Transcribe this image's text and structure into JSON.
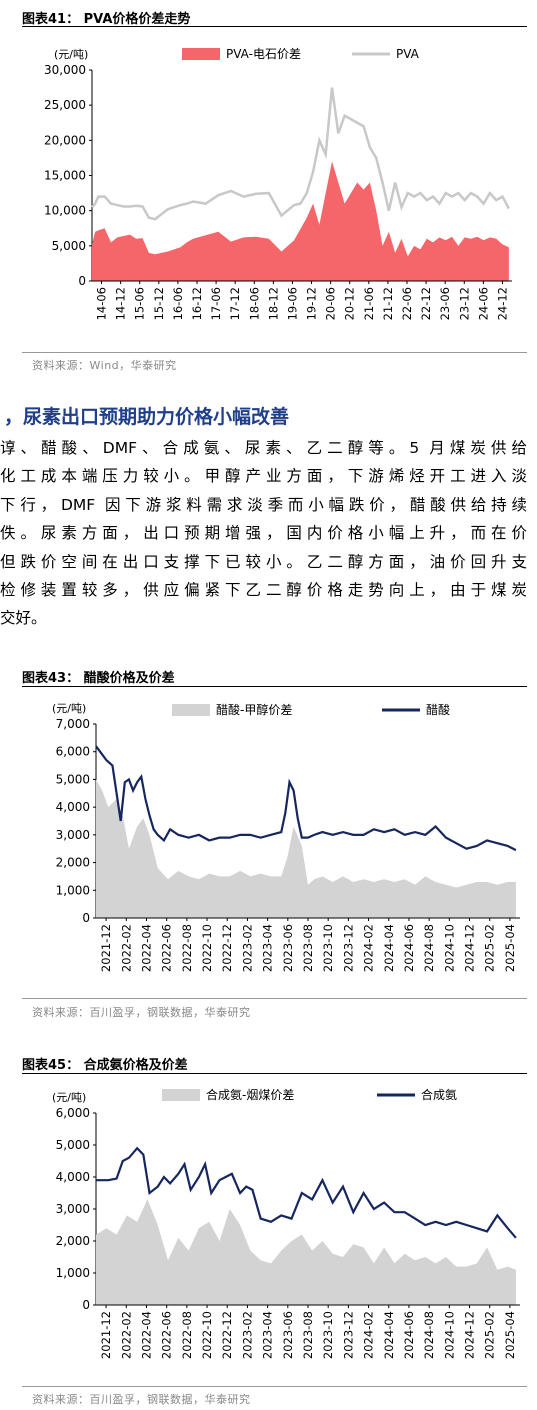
{
  "chart1": {
    "title": "图表41： PVA价格价差走势",
    "unit": "(元/吨)",
    "source": "资料来源：Wind，华泰研究",
    "legend": [
      "PVA-电石价差",
      "PVA"
    ],
    "colors": {
      "spread": "#f4666a",
      "price": "#c8c8c8"
    }
  },
  "chart2": {
    "title": "图表43： 醋酸价格及价差",
    "unit": "(元/吨)",
    "source": "资料来源：百川盈孚，钢联数据，华泰研究",
    "legend": [
      "醋酸-甲醇价差",
      "醋酸"
    ],
    "colors": {
      "spread": "#d3d3d3",
      "price": "#16265e"
    }
  },
  "chart3": {
    "title": "图表45： 合成氨价格及价差",
    "unit": "(元/吨)",
    "source": "资料来源：百川盈孚，钢联数据，华泰研究",
    "legend": [
      "合成氨-烟煤价差",
      "合成氨"
    ],
    "colors": {
      "spread": "#d3d3d3",
      "price": "#16265e"
    }
  },
  "section": {
    "heading": "，尿素出口预期助力价格小幅改善",
    "lines": [
      "谆、醋酸、DMF、合成氨、尿素、乙二醇等。5 月煤炭供给",
      "化工成本端压力较小。甲醇产业方面，下游烯烃开工进入淡",
      "下行，DMF 因下游浆料需求淡季而小幅跌价，醋酸供给持续",
      "佚。尿素方面，出口预期增强，国内价格小幅上升，而在价",
      "但跌价空间在出口支撑下已较小。乙二醇方面，油价回升支",
      "检修装置较多，供应偏紧下乙二醇价格走势向上，由于煤炭",
      "交好。"
    ]
  },
  "chart_data": [
    {
      "type": "area",
      "title": "PVA价格价差走势",
      "ylabel": "(元/吨)",
      "ylim": [
        0,
        30000
      ],
      "yticks": [
        0,
        5000,
        10000,
        15000,
        20000,
        25000,
        30000
      ],
      "x_labels": [
        "14-06",
        "14-12",
        "15-06",
        "15-12",
        "16-06",
        "16-12",
        "17-06",
        "17-12",
        "18-06",
        "18-12",
        "19-06",
        "19-12",
        "20-06",
        "20-12",
        "21-06",
        "21-12",
        "22-06",
        "22-12",
        "23-06",
        "23-12",
        "24-06",
        "24-12"
      ],
      "x_period": [
        "14-06",
        "25-05"
      ],
      "series": [
        {
          "name": "PVA-电石价差",
          "kind": "area",
          "x": [
            0,
            1,
            2,
            4,
            6,
            8,
            10,
            12,
            14,
            16,
            18,
            20,
            24,
            28,
            30,
            32,
            36,
            40,
            44,
            48,
            52,
            56,
            60,
            64,
            68,
            70,
            72,
            76,
            80,
            84,
            86,
            88,
            90,
            92,
            94,
            96,
            98,
            100,
            102,
            104,
            106,
            108,
            110,
            112,
            114,
            116,
            118,
            120,
            122,
            124,
            126,
            128,
            130,
            132
          ],
          "values": [
            5200,
            7000,
            7200,
            7500,
            5500,
            6200,
            6400,
            6600,
            6000,
            6100,
            4000,
            3800,
            4200,
            4800,
            5500,
            6000,
            6500,
            7000,
            5600,
            6200,
            6300,
            6000,
            4200,
            5800,
            9000,
            11000,
            8000,
            17000,
            11000,
            14000,
            13000,
            14000,
            10000,
            5000,
            7000,
            4000,
            6000,
            3500,
            5000,
            4500,
            6000,
            5500,
            6200,
            5800,
            6300,
            5000,
            6200,
            6000,
            6300,
            5800,
            6200,
            6000,
            5200,
            4800
          ]
        },
        {
          "name": "PVA",
          "kind": "line",
          "x": [
            0,
            1,
            2,
            4,
            6,
            8,
            10,
            12,
            14,
            16,
            18,
            20,
            24,
            28,
            30,
            32,
            36,
            40,
            44,
            48,
            52,
            56,
            60,
            64,
            66,
            68,
            70,
            72,
            74,
            76,
            78,
            80,
            84,
            86,
            88,
            90,
            92,
            94,
            96,
            98,
            100,
            102,
            104,
            106,
            108,
            110,
            112,
            114,
            116,
            118,
            120,
            122,
            124,
            126,
            128,
            130,
            132
          ],
          "values": [
            10500,
            11000,
            12000,
            12000,
            11000,
            10800,
            10600,
            10600,
            10700,
            10600,
            9000,
            8800,
            10200,
            10800,
            11000,
            11300,
            11000,
            12200,
            12800,
            12000,
            12400,
            12500,
            9300,
            10800,
            11000,
            12500,
            15500,
            20000,
            18000,
            27500,
            21000,
            23500,
            22500,
            22000,
            19000,
            17500,
            14000,
            10000,
            14000,
            10500,
            12500,
            12000,
            12500,
            11500,
            12000,
            11000,
            12500,
            12000,
            12500,
            11500,
            12500,
            12000,
            11000,
            12500,
            11500,
            12000,
            10300
          ]
        }
      ]
    },
    {
      "type": "area",
      "title": "醋酸价格及价差",
      "ylabel": "(元/吨)",
      "ylim": [
        0,
        7000
      ],
      "yticks": [
        0,
        1000,
        2000,
        3000,
        4000,
        5000,
        6000,
        7000
      ],
      "x_labels": [
        "2021-12",
        "2022-02",
        "2022-04",
        "2022-06",
        "2022-08",
        "2022-10",
        "2022-12",
        "2023-02",
        "2023-04",
        "2023-06",
        "2023-08",
        "2023-10",
        "2023-12",
        "2024-02",
        "2024-04",
        "2024-06",
        "2024-08",
        "2024-10",
        "2024-12",
        "2025-02",
        "2025-04"
      ],
      "series": [
        {
          "name": "醋酸-甲醇价差",
          "kind": "area",
          "x": [
            0,
            0.3,
            0.6,
            1,
            1.3,
            1.6,
            2,
            2.3,
            2.6,
            3,
            3.5,
            4,
            4.5,
            5,
            5.5,
            6,
            6.5,
            7,
            7.5,
            8,
            8.5,
            9,
            9.3,
            9.6,
            10,
            10.3,
            10.6,
            11,
            11.5,
            12,
            12.5,
            13,
            13.5,
            14,
            14.5,
            15,
            15.5,
            16,
            16.5,
            17,
            17.5,
            18,
            18.5,
            19,
            19.5,
            20,
            20.4
          ],
          "values": [
            5000,
            4600,
            4000,
            4300,
            3700,
            2500,
            3300,
            3600,
            3000,
            1800,
            1400,
            1700,
            1500,
            1400,
            1600,
            1500,
            1500,
            1700,
            1500,
            1600,
            1500,
            1500,
            2200,
            3300,
            2600,
            1200,
            1400,
            1500,
            1300,
            1500,
            1300,
            1400,
            1300,
            1400,
            1300,
            1400,
            1200,
            1500,
            1300,
            1200,
            1100,
            1200,
            1300,
            1300,
            1200,
            1300,
            1300
          ]
        },
        {
          "name": "醋酸",
          "kind": "line",
          "x": [
            0,
            0.2,
            0.5,
            0.8,
            1,
            1.2,
            1.4,
            1.6,
            1.8,
            2,
            2.2,
            2.4,
            2.6,
            2.8,
            3,
            3.3,
            3.6,
            4,
            4.5,
            5,
            5.5,
            6,
            6.5,
            7,
            7.5,
            8,
            8.5,
            9,
            9.2,
            9.4,
            9.6,
            9.8,
            10,
            10.3,
            10.6,
            11,
            11.5,
            12,
            12.5,
            13,
            13.5,
            14,
            14.5,
            15,
            15.5,
            16,
            16.5,
            17,
            17.5,
            18,
            18.5,
            19,
            19.5,
            20,
            20.4
          ],
          "values": [
            6200,
            6000,
            5700,
            5500,
            4500,
            3500,
            4900,
            5000,
            4600,
            4900,
            5100,
            4300,
            3700,
            3200,
            3000,
            2800,
            3200,
            3000,
            2900,
            3000,
            2800,
            2900,
            2900,
            3000,
            3000,
            2900,
            3000,
            3100,
            3800,
            4900,
            4600,
            3600,
            2900,
            2900,
            3000,
            3100,
            3000,
            3100,
            3000,
            3000,
            3200,
            3100,
            3200,
            3000,
            3100,
            3000,
            3300,
            2900,
            2700,
            2500,
            2600,
            2800,
            2700,
            2600,
            2450
          ]
        }
      ]
    },
    {
      "type": "area",
      "title": "合成氨价格及价差",
      "ylabel": "(元/吨)",
      "ylim": [
        0,
        6000
      ],
      "yticks": [
        0,
        1000,
        2000,
        3000,
        4000,
        5000,
        6000
      ],
      "x_labels": [
        "2021-12",
        "2022-02",
        "2022-04",
        "2022-06",
        "2022-08",
        "2022-10",
        "2022-12",
        "2023-02",
        "2023-04",
        "2023-06",
        "2023-08",
        "2023-10",
        "2023-12",
        "2024-02",
        "2024-04",
        "2024-06",
        "2024-08",
        "2024-10",
        "2024-12",
        "2025-02",
        "2025-04"
      ],
      "series": [
        {
          "name": "合成氨-烟煤价差",
          "kind": "area",
          "x": [
            0,
            0.5,
            1,
            1.5,
            2,
            2.5,
            3,
            3.5,
            4,
            4.5,
            5,
            5.5,
            6,
            6.5,
            7,
            7.5,
            8,
            8.5,
            9,
            9.5,
            10,
            10.5,
            11,
            11.5,
            12,
            12.5,
            13,
            13.5,
            14,
            14.5,
            15,
            15.5,
            16,
            16.5,
            17,
            17.5,
            18,
            18.5,
            19,
            19.5,
            20,
            20.4
          ],
          "values": [
            2200,
            2400,
            2200,
            2800,
            2600,
            3300,
            2500,
            1400,
            2100,
            1700,
            2400,
            2600,
            2000,
            3000,
            2500,
            1700,
            1400,
            1300,
            1700,
            2000,
            2200,
            1700,
            2000,
            1600,
            1500,
            1900,
            1800,
            1300,
            1800,
            1300,
            1600,
            1400,
            1500,
            1300,
            1500,
            1200,
            1200,
            1300,
            1800,
            1100,
            1200,
            1100
          ]
        },
        {
          "name": "合成氨",
          "kind": "line",
          "x": [
            0,
            0.3,
            0.6,
            1,
            1.3,
            1.6,
            2,
            2.3,
            2.6,
            3,
            3.3,
            3.6,
            4,
            4.3,
            4.6,
            5,
            5.3,
            5.6,
            6,
            6.3,
            6.6,
            7,
            7.3,
            7.6,
            8,
            8.5,
            9,
            9.5,
            10,
            10.5,
            11,
            11.5,
            12,
            12.5,
            13,
            13.5,
            14,
            14.5,
            15,
            15.5,
            16,
            16.5,
            17,
            17.5,
            18,
            18.5,
            19,
            19.5,
            20,
            20.4
          ],
          "values": [
            3900,
            3900,
            3900,
            3950,
            4500,
            4600,
            4900,
            4700,
            3500,
            3700,
            4000,
            3800,
            4100,
            4400,
            3600,
            4000,
            4400,
            3500,
            3900,
            4000,
            4100,
            3500,
            3700,
            3600,
            2700,
            2600,
            2800,
            2700,
            3500,
            3300,
            3900,
            3200,
            3700,
            2900,
            3500,
            3000,
            3200,
            2900,
            2900,
            2700,
            2500,
            2600,
            2500,
            2600,
            2500,
            2400,
            2300,
            2800,
            2400,
            2100
          ]
        }
      ]
    }
  ]
}
